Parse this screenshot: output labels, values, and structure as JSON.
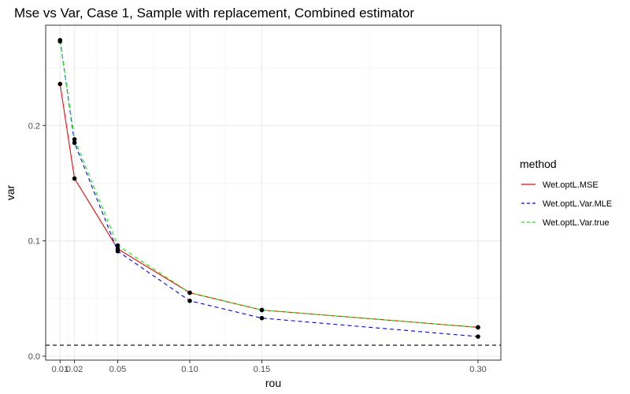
{
  "chart_data": {
    "type": "line",
    "title": "Mse vs Var, Case 1, Sample with replacement, Combined estimator",
    "xlabel": "rou",
    "ylabel": "var",
    "x": [
      0.01,
      0.02,
      0.05,
      0.1,
      0.15,
      0.3
    ],
    "x_tick_labels": [
      "0.01",
      "0.02",
      "0.05",
      "0.10",
      "0.15",
      "0.30"
    ],
    "y_ticks": [
      0.0,
      0.1,
      0.2
    ],
    "y_tick_labels": [
      "0.0",
      "0.1",
      "0.2"
    ],
    "xlim": [
      0.0,
      0.31
    ],
    "ylim": [
      -0.002,
      0.29
    ],
    "grid": true,
    "legend": {
      "title": "method",
      "position": "right"
    },
    "series": [
      {
        "name": "Wet.optL.MSE",
        "color": "#ff0000",
        "dash": "solid",
        "values": [
          0.236,
          0.154,
          0.093,
          0.055,
          0.04,
          0.025
        ]
      },
      {
        "name": "Wet.optL.Var.MLE",
        "color": "#0000ff",
        "dash": "dashed",
        "values": [
          0.274,
          0.185,
          0.091,
          0.048,
          0.033,
          0.017
        ]
      },
      {
        "name": "Wet.optL.Var.true",
        "color": "#00ff00",
        "dash": "dashed",
        "values": [
          0.273,
          0.188,
          0.096,
          0.055,
          0.04,
          0.025
        ]
      }
    ],
    "reference_line": {
      "y": 0.0095,
      "color": "#000000",
      "dash": "dashed"
    }
  }
}
